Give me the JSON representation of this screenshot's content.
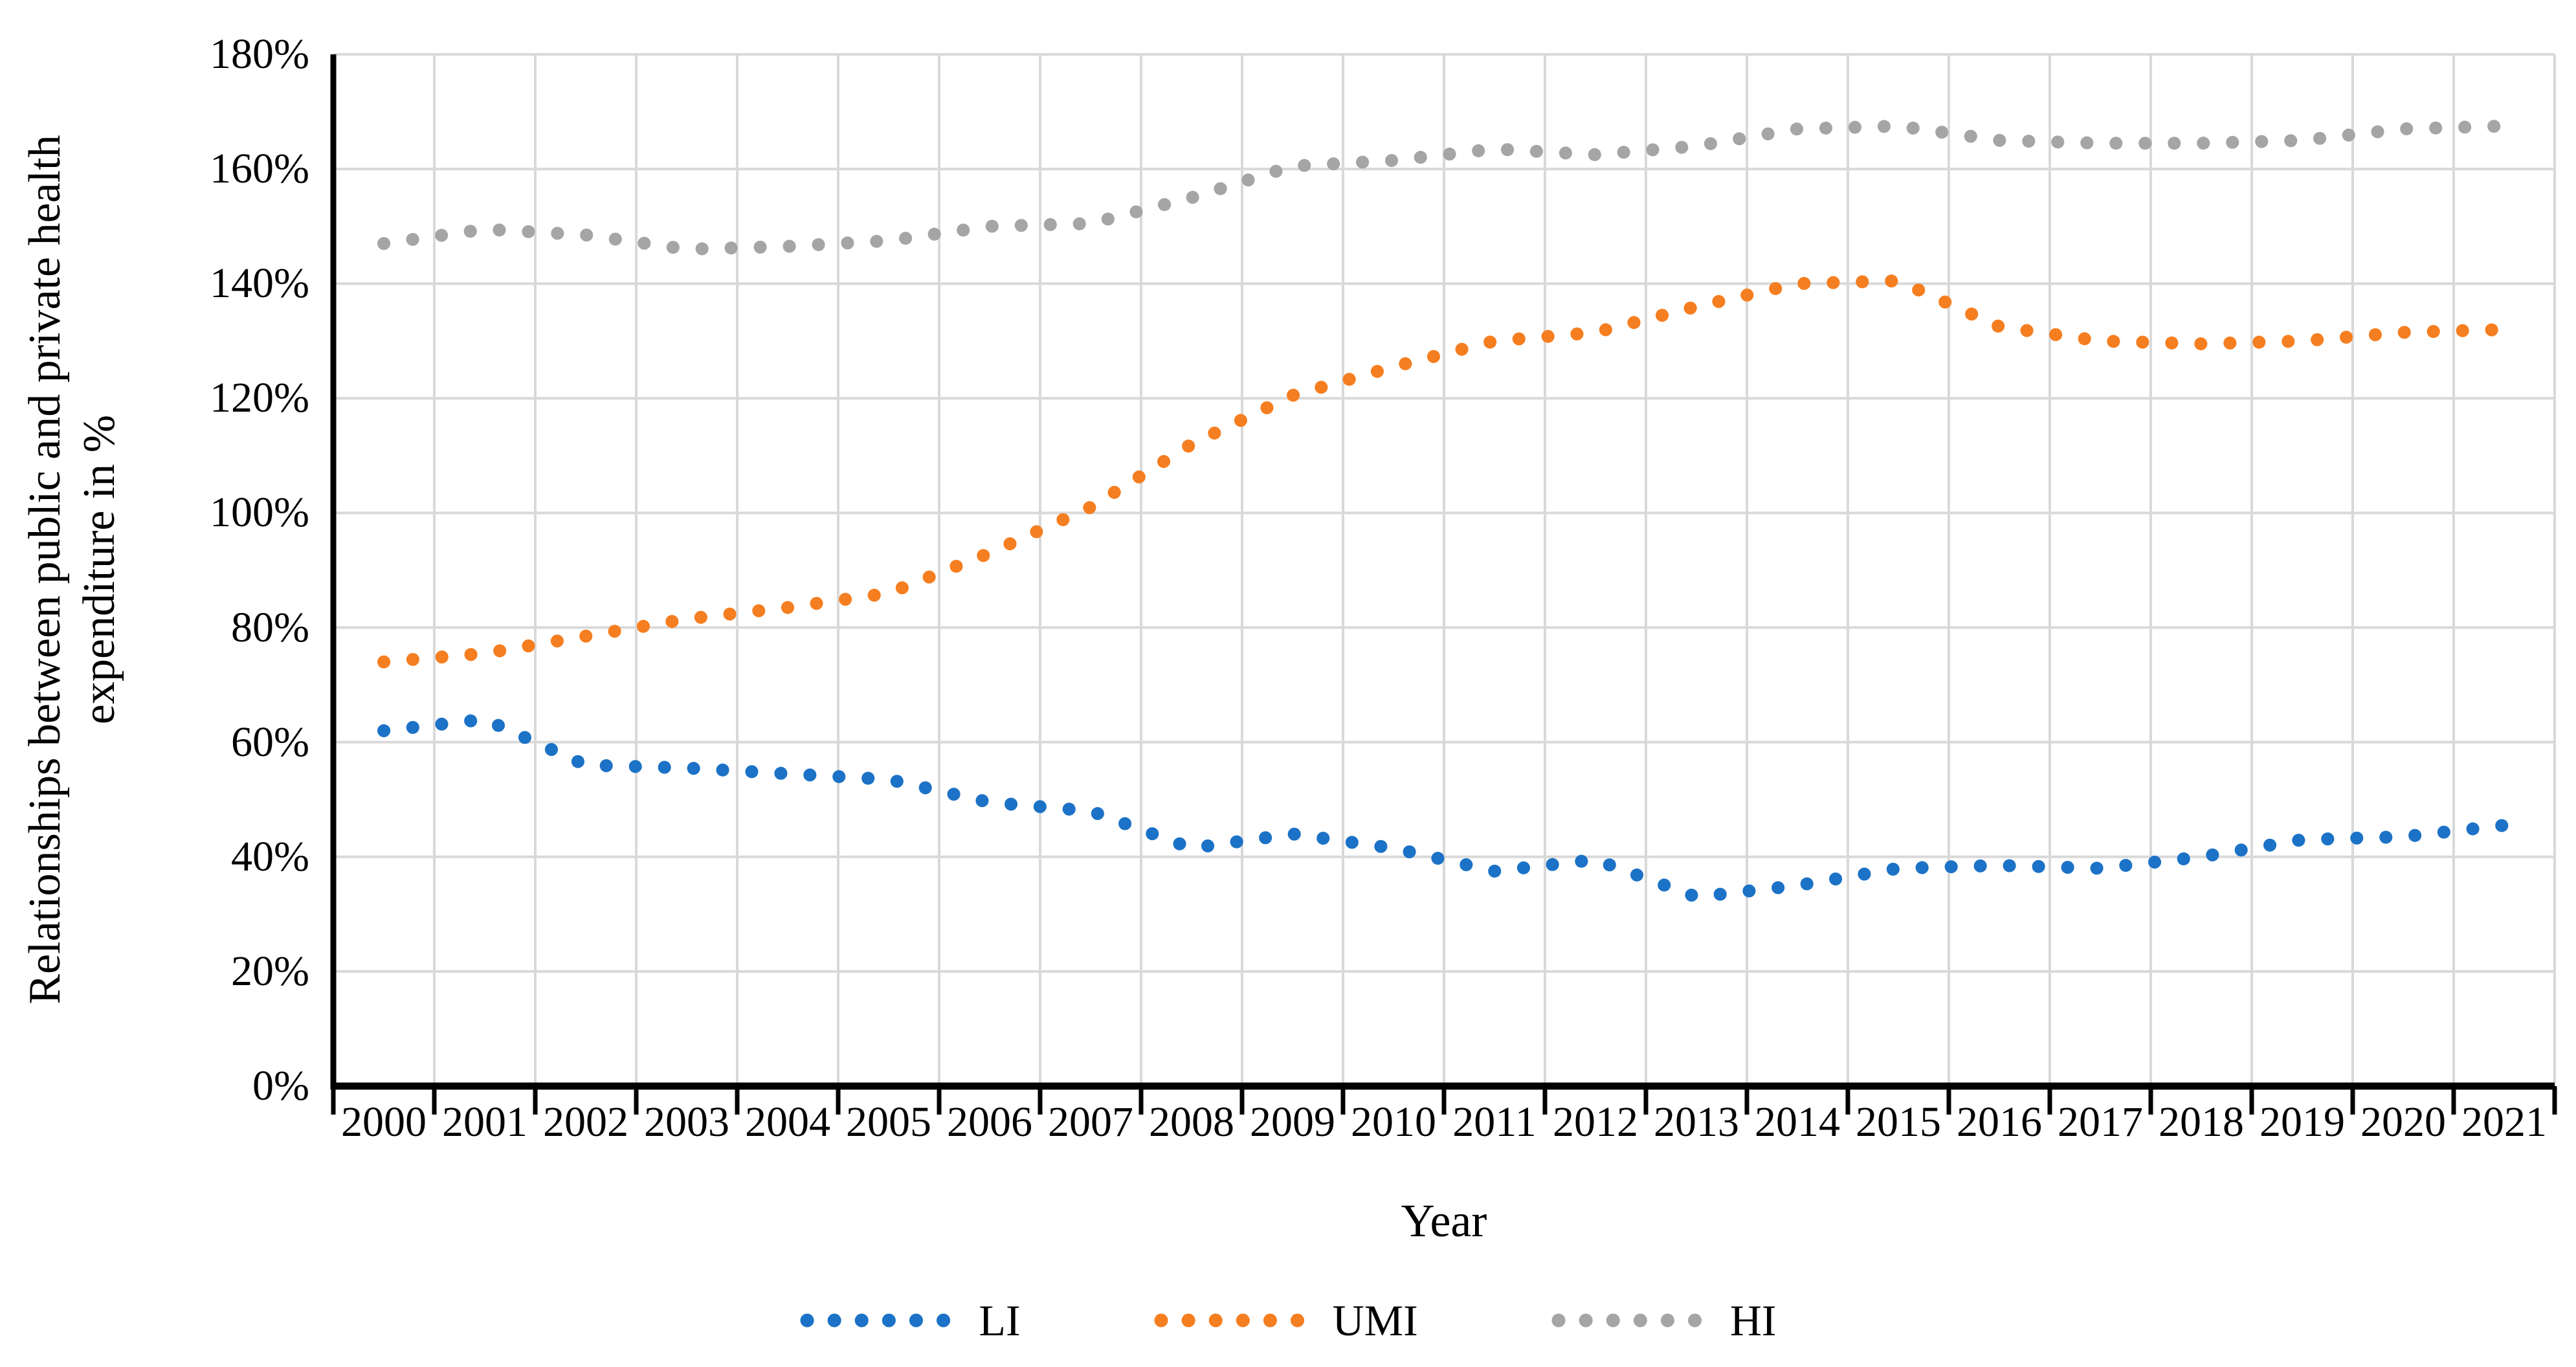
{
  "figure": {
    "background": "#ffffff",
    "axis_color": "#000000",
    "gridline_color": "#d9d9d9",
    "text_color": "#000000"
  },
  "chart_data": {
    "type": "line",
    "line_style": "dotted",
    "title": "",
    "xlabel": "Year",
    "ylabel": "Relationships between public and private health expenditure in %",
    "x_categories": [
      "2000",
      "2001",
      "2002",
      "2003",
      "2004",
      "2005",
      "2006",
      "2007",
      "2008",
      "2009",
      "2010",
      "2011",
      "2012",
      "2013",
      "2014",
      "2015",
      "2016",
      "2017",
      "2018",
      "2019",
      "2020",
      "2021"
    ],
    "yticks": [
      "0%",
      "20%",
      "40%",
      "60%",
      "80%",
      "100%",
      "120%",
      "140%",
      "160%",
      "180%"
    ],
    "ylim": [
      0,
      180
    ],
    "ytick_step": 20,
    "grid": true,
    "legend_position": "bottom",
    "series": [
      {
        "name": "LI",
        "color": "#1c72c6",
        "values": [
          62,
          64,
          56,
          55.5,
          54.5,
          53.5,
          49.5,
          48,
          41.5,
          44,
          41.5,
          37.5,
          39.5,
          33,
          35,
          38,
          38.5,
          38,
          40,
          43,
          43.5,
          45.5
        ]
      },
      {
        "name": "UMI",
        "color": "#f57e20",
        "values": [
          74,
          75.5,
          78.5,
          81.5,
          83.5,
          86,
          93,
          101,
          112,
          120.5,
          125.5,
          130,
          131.5,
          136,
          140,
          140.5,
          132.5,
          130,
          129.5,
          130,
          131.5,
          132
        ]
      },
      {
        "name": "HI",
        "color": "#a5a5a5",
        "values": [
          147,
          149.5,
          148.5,
          146,
          146.5,
          147.5,
          150,
          150.5,
          155,
          160.5,
          161.5,
          163.5,
          162.5,
          164,
          167,
          167.5,
          165,
          164.5,
          164.5,
          165,
          167,
          167.5
        ]
      }
    ]
  }
}
